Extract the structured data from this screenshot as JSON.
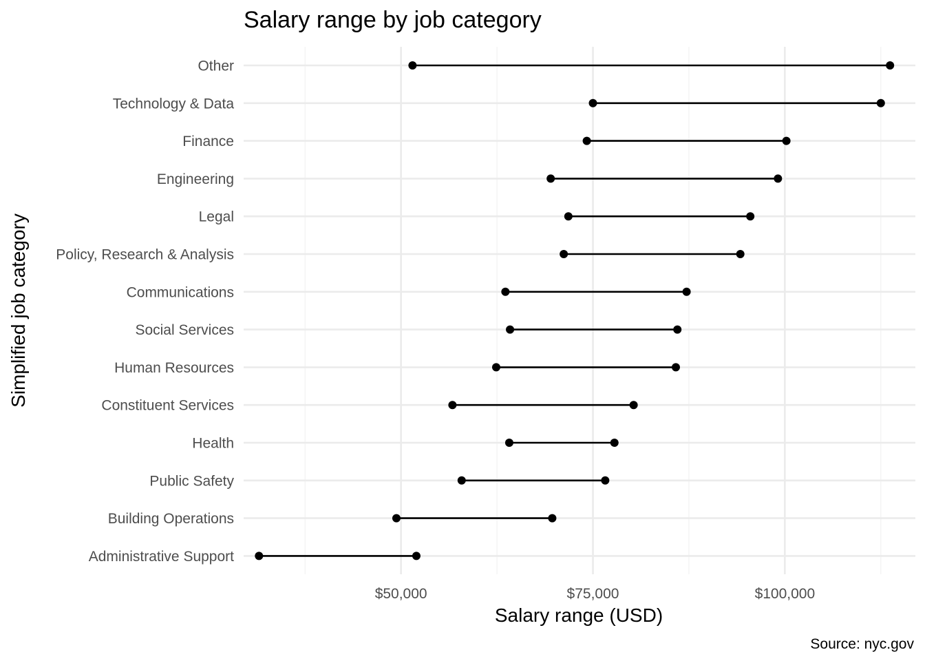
{
  "chart_data": {
    "type": "dumbbell",
    "title": "Salary range by job category",
    "xlabel": "Salary range (USD)",
    "ylabel": "Simplified job category",
    "caption": "Source: nyc.gov",
    "xlim": [
      29500,
      117000
    ],
    "x_ticks": [
      50000,
      75000,
      100000
    ],
    "x_tick_labels": [
      "$50,000",
      "$75,000",
      "$100,000"
    ],
    "x_minor_ticks": [
      37500,
      62500,
      87500,
      112500
    ],
    "grid": true,
    "categories": [
      "Other",
      "Technology & Data",
      "Finance",
      "Engineering",
      "Legal",
      "Policy, Research & Analysis",
      "Communications",
      "Social Services",
      "Human Resources",
      "Constituent Services",
      "Health",
      "Public Safety",
      "Building Operations",
      "Administrative Support"
    ],
    "series": [
      {
        "name": "min",
        "values": [
          51500,
          75000,
          74200,
          69500,
          71800,
          71200,
          63600,
          64200,
          62400,
          56700,
          64100,
          57900,
          49400,
          31500
        ]
      },
      {
        "name": "max",
        "values": [
          113700,
          112500,
          100200,
          99100,
          95500,
          94200,
          87200,
          86000,
          85800,
          80300,
          77800,
          76600,
          69700,
          52000
        ]
      }
    ]
  }
}
